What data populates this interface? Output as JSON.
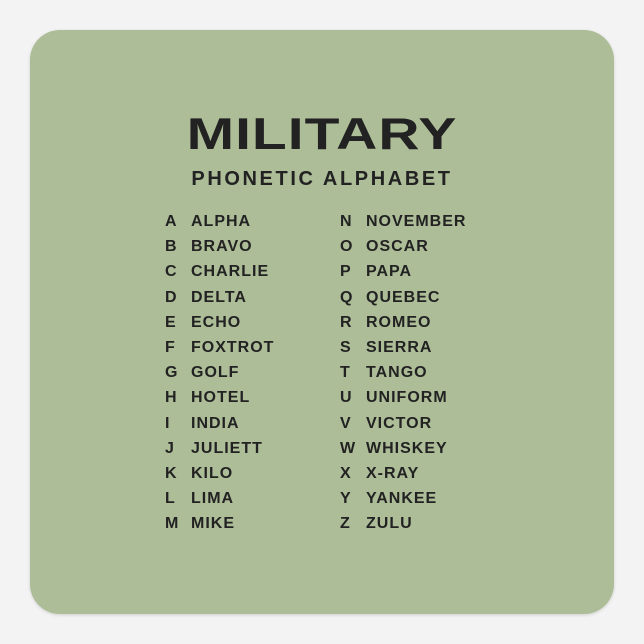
{
  "title": "MILITARY",
  "subtitle": "PHONETIC ALPHABET",
  "colors": {
    "sticker": "#adbd98",
    "text": "#222222",
    "background": "#f3f3f3"
  },
  "left_column": [
    {
      "letter": "A",
      "word": "ALPHA"
    },
    {
      "letter": "B",
      "word": "BRAVO"
    },
    {
      "letter": "C",
      "word": "CHARLIE"
    },
    {
      "letter": "D",
      "word": "DELTA"
    },
    {
      "letter": "E",
      "word": "ECHO"
    },
    {
      "letter": "F",
      "word": "FOXTROT"
    },
    {
      "letter": "G",
      "word": "GOLF"
    },
    {
      "letter": "H",
      "word": "HOTEL"
    },
    {
      "letter": "I",
      "word": "INDIA"
    },
    {
      "letter": "J",
      "word": "JULIETT"
    },
    {
      "letter": "K",
      "word": "KILO"
    },
    {
      "letter": "L",
      "word": "LIMA"
    },
    {
      "letter": "M",
      "word": "MIKE"
    }
  ],
  "right_column": [
    {
      "letter": "N",
      "word": "NOVEMBER"
    },
    {
      "letter": "O",
      "word": "OSCAR"
    },
    {
      "letter": "P",
      "word": "PAPA"
    },
    {
      "letter": "Q",
      "word": "QUEBEC"
    },
    {
      "letter": "R",
      "word": "ROMEO"
    },
    {
      "letter": "S",
      "word": "SIERRA"
    },
    {
      "letter": "T",
      "word": "TANGO"
    },
    {
      "letter": "U",
      "word": "UNIFORM"
    },
    {
      "letter": "V",
      "word": "VICTOR"
    },
    {
      "letter": "W",
      "word": "WHISKEY"
    },
    {
      "letter": "X",
      "word": "X-RAY"
    },
    {
      "letter": "Y",
      "word": "YANKEE"
    },
    {
      "letter": "Z",
      "word": "ZULU"
    }
  ]
}
